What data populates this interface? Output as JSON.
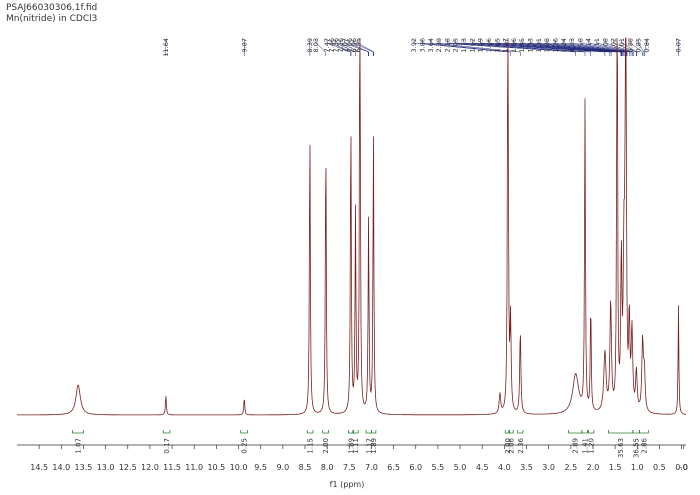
{
  "header": {
    "line1": "PSAJ66030306.1f.fid",
    "line2": "Mn(nitride) in CDCl3"
  },
  "colors": {
    "spectrum": "#7a1f1f",
    "peak_label_leader": "#1a237e",
    "integral": "#2e7d32",
    "axis": "#333333",
    "text": "#333333"
  },
  "chart_data": {
    "type": "line",
    "title": "",
    "xlabel": "f1 (ppm)",
    "xlim": [
      15.0,
      -0.1
    ],
    "x_reversed": true,
    "xticks": [
      "14.5",
      "14.0",
      "13.5",
      "13.0",
      "12.5",
      "12.0",
      "11.5",
      "11.0",
      "10.5",
      "10.0",
      "9.5",
      "9.0",
      "8.5",
      "8.0",
      "7.5",
      "7.0",
      "6.5",
      "6.0",
      "5.5",
      "5.0",
      "4.5",
      "4.0",
      "3.5",
      "3.0",
      "2.5",
      "2.0",
      "1.5",
      "1.0",
      "0.5",
      "0.0",
      "-0"
    ],
    "xtick_values": [
      14.5,
      14.0,
      13.5,
      13.0,
      12.5,
      12.0,
      11.5,
      11.0,
      10.5,
      10.0,
      9.5,
      9.0,
      8.5,
      8.0,
      7.5,
      7.0,
      6.5,
      6.0,
      5.5,
      5.0,
      4.5,
      4.0,
      3.5,
      3.0,
      2.5,
      2.0,
      1.5,
      1.0,
      0.5,
      0.0,
      -0.05
    ],
    "peak_labels": [
      "11.64",
      "9.87",
      "8.39",
      "8.03",
      "7.47",
      "7.46",
      "7.36",
      "7.26",
      "7.07",
      "7.06",
      "6.96",
      "6.95",
      "3.92",
      "3.86",
      "3.64",
      "2.39",
      "2.18",
      "2.05",
      "1.73",
      "1.62",
      "1.59",
      "1.46",
      "1.45",
      "1.37",
      "1.36",
      "1.35",
      "1.33",
      "1.31",
      "1.28",
      "1.26",
      "1.24",
      "1.23",
      "1.18",
      "1.14",
      "1.11",
      "1.08",
      "1.02",
      "1.01",
      "0.88",
      "0.85",
      "0.84",
      "0.07"
    ],
    "peaks": [
      {
        "ppm": 13.62,
        "height": 0.06,
        "width": 0.06
      },
      {
        "ppm": 11.64,
        "height": 0.04,
        "width": 0.012
      },
      {
        "ppm": 9.87,
        "height": 0.035,
        "width": 0.012
      },
      {
        "ppm": 8.39,
        "height": 0.58,
        "width": 0.012
      },
      {
        "ppm": 8.03,
        "height": 0.56,
        "width": 0.012
      },
      {
        "ppm": 7.465,
        "height": 0.6,
        "width": 0.012
      },
      {
        "ppm": 7.36,
        "height": 0.4,
        "width": 0.012
      },
      {
        "ppm": 7.26,
        "height": 1.2,
        "width": 0.01
      },
      {
        "ppm": 7.065,
        "height": 0.39,
        "width": 0.012
      },
      {
        "ppm": 6.955,
        "height": 0.56,
        "width": 0.012
      },
      {
        "ppm": 3.92,
        "height": 0.95,
        "width": 0.012
      },
      {
        "ppm": 3.86,
        "height": 0.18,
        "width": 0.015
      },
      {
        "ppm": 3.64,
        "height": 0.17,
        "width": 0.015
      },
      {
        "ppm": 4.1,
        "height": 0.04,
        "width": 0.02
      },
      {
        "ppm": 2.39,
        "height": 0.08,
        "width": 0.08
      },
      {
        "ppm": 2.18,
        "height": 0.62,
        "width": 0.012
      },
      {
        "ppm": 2.05,
        "height": 0.22,
        "width": 0.012
      },
      {
        "ppm": 1.73,
        "height": 0.12,
        "width": 0.03
      },
      {
        "ppm": 1.6,
        "height": 0.22,
        "width": 0.02
      },
      {
        "ppm": 1.455,
        "height": 1.2,
        "width": 0.01
      },
      {
        "ppm": 1.36,
        "height": 0.3,
        "width": 0.015
      },
      {
        "ppm": 1.3,
        "height": 0.3,
        "width": 0.02
      },
      {
        "ppm": 1.26,
        "height": 1.2,
        "width": 0.012
      },
      {
        "ppm": 1.18,
        "height": 0.18,
        "width": 0.015
      },
      {
        "ppm": 1.12,
        "height": 0.16,
        "width": 0.02
      },
      {
        "ppm": 1.02,
        "height": 0.08,
        "width": 0.02
      },
      {
        "ppm": 0.88,
        "height": 0.14,
        "width": 0.02
      },
      {
        "ppm": 0.84,
        "height": 0.08,
        "width": 0.02
      },
      {
        "ppm": 0.07,
        "height": 0.22,
        "width": 0.01
      }
    ],
    "integrals": [
      {
        "from": 13.75,
        "to": 13.5,
        "value": "1.07"
      },
      {
        "from": 11.7,
        "to": 11.55,
        "value": "0.17"
      },
      {
        "from": 9.95,
        "to": 9.8,
        "value": "0.25"
      },
      {
        "from": 8.45,
        "to": 8.32,
        "value": "1.15"
      },
      {
        "from": 8.1,
        "to": 7.97,
        "value": "2.00"
      },
      {
        "from": 7.52,
        "to": 7.4,
        "value": "1.89"
      },
      {
        "from": 7.42,
        "to": 7.3,
        "value": "1.11"
      },
      {
        "from": 7.12,
        "to": 7.0,
        "value": "1.17"
      },
      {
        "from": 7.0,
        "to": 6.9,
        "value": "1.89"
      },
      {
        "from": 3.98,
        "to": 3.88,
        "value": "2.00"
      },
      {
        "from": 3.9,
        "to": 3.8,
        "value": "2.06"
      },
      {
        "from": 3.7,
        "to": 3.58,
        "value": "2.36"
      },
      {
        "from": 2.55,
        "to": 2.25,
        "value": "2.89"
      },
      {
        "from": 2.25,
        "to": 2.12,
        "value": "1.41"
      },
      {
        "from": 2.1,
        "to": 1.98,
        "value": "1.20"
      },
      {
        "from": 1.65,
        "to": 1.1,
        "value": "35.63"
      },
      {
        "from": 1.1,
        "to": 0.95,
        "value": "36.55"
      },
      {
        "from": 0.95,
        "to": 0.75,
        "value": "2.86"
      }
    ]
  }
}
